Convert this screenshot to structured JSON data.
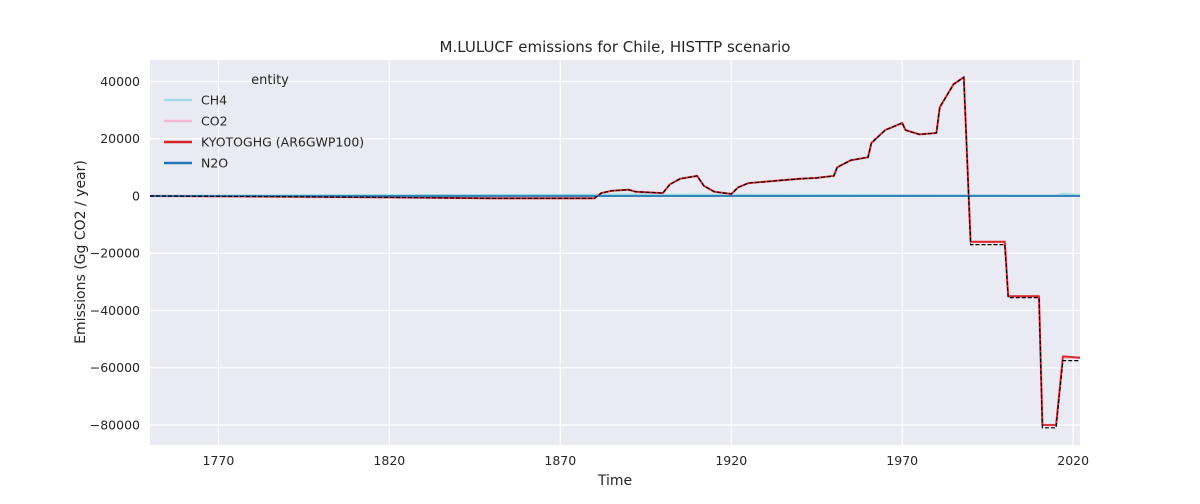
{
  "chart_data": {
    "type": "line",
    "title": "M.LULUCF emissions for Chile, HISTTP scenario",
    "xlabel": "Time",
    "ylabel": "Emissions (Gg CO2 / year)",
    "xlim": [
      1750,
      2022
    ],
    "ylim": [
      -87000,
      47500
    ],
    "x_ticks": [
      1770,
      1820,
      1870,
      1920,
      1970,
      2020
    ],
    "y_ticks": [
      40000,
      20000,
      0,
      -20000,
      -40000,
      -60000,
      -80000
    ],
    "y_tick_labels": [
      "40000",
      "20000",
      "0",
      "−20000",
      "−40000",
      "−60000",
      "−80000"
    ],
    "grid": true,
    "legend": {
      "title": "entity",
      "placement": "top-left"
    },
    "series": [
      {
        "name": "CH4",
        "color": "#9edae5",
        "points": [
          [
            1750,
            100
          ],
          [
            1880,
            400
          ],
          [
            1890,
            500
          ],
          [
            1900,
            400
          ],
          [
            1950,
            300
          ],
          [
            2000,
            200
          ],
          [
            2015,
            200
          ],
          [
            2017,
            700
          ],
          [
            2022,
            300
          ]
        ]
      },
      {
        "name": "CO2",
        "color": "#f7b6d2",
        "points": [
          [
            1750,
            0
          ],
          [
            1780,
            -200
          ],
          [
            1820,
            -500
          ],
          [
            1850,
            -800
          ],
          [
            1880,
            -800
          ],
          [
            1882,
            1000
          ],
          [
            1885,
            1800
          ],
          [
            1890,
            2200
          ],
          [
            1892,
            1500
          ],
          [
            1900,
            1000
          ],
          [
            1902,
            4000
          ],
          [
            1905,
            6000
          ],
          [
            1910,
            7000
          ],
          [
            1912,
            3500
          ],
          [
            1915,
            1500
          ],
          [
            1920,
            700
          ],
          [
            1922,
            3000
          ],
          [
            1925,
            4500
          ],
          [
            1930,
            5000
          ],
          [
            1935,
            5500
          ],
          [
            1940,
            6000
          ],
          [
            1945,
            6300
          ],
          [
            1950,
            7000
          ],
          [
            1951,
            10000
          ],
          [
            1955,
            12500
          ],
          [
            1960,
            13500
          ],
          [
            1961,
            18500
          ],
          [
            1965,
            23000
          ],
          [
            1970,
            25500
          ],
          [
            1971,
            23000
          ],
          [
            1975,
            21500
          ],
          [
            1980,
            22000
          ],
          [
            1981,
            31000
          ],
          [
            1985,
            39000
          ],
          [
            1988,
            41500
          ],
          [
            1990,
            -16000
          ],
          [
            2000,
            -16000
          ],
          [
            2001,
            -35000
          ],
          [
            2010,
            -35000
          ],
          [
            2011,
            -80000
          ],
          [
            2015,
            -80000
          ],
          [
            2017,
            -56500
          ],
          [
            2022,
            -56500
          ]
        ]
      },
      {
        "name": "KYOTOGHG (AR6GWP100)",
        "color": "#d62728",
        "points": [
          [
            1750,
            0
          ],
          [
            1780,
            -200
          ],
          [
            1820,
            -500
          ],
          [
            1850,
            -800
          ],
          [
            1880,
            -800
          ],
          [
            1882,
            1000
          ],
          [
            1885,
            1800
          ],
          [
            1890,
            2200
          ],
          [
            1892,
            1500
          ],
          [
            1900,
            1000
          ],
          [
            1902,
            4000
          ],
          [
            1905,
            6000
          ],
          [
            1910,
            7000
          ],
          [
            1912,
            3500
          ],
          [
            1915,
            1500
          ],
          [
            1920,
            700
          ],
          [
            1922,
            3000
          ],
          [
            1925,
            4500
          ],
          [
            1930,
            5000
          ],
          [
            1935,
            5500
          ],
          [
            1940,
            6000
          ],
          [
            1945,
            6300
          ],
          [
            1950,
            7000
          ],
          [
            1951,
            10000
          ],
          [
            1955,
            12500
          ],
          [
            1960,
            13500
          ],
          [
            1961,
            18500
          ],
          [
            1965,
            23000
          ],
          [
            1970,
            25500
          ],
          [
            1971,
            23000
          ],
          [
            1975,
            21500
          ],
          [
            1980,
            22000
          ],
          [
            1981,
            31000
          ],
          [
            1985,
            39000
          ],
          [
            1988,
            41500
          ],
          [
            1990,
            -16000
          ],
          [
            2000,
            -16000
          ],
          [
            2001,
            -35000
          ],
          [
            2010,
            -35000
          ],
          [
            2011,
            -80000
          ],
          [
            2015,
            -80000
          ],
          [
            2017,
            -56000
          ],
          [
            2022,
            -56500
          ]
        ]
      },
      {
        "name": "N2O",
        "color": "#1f77b4",
        "points": [
          [
            1750,
            0
          ],
          [
            2022,
            0
          ]
        ]
      }
    ],
    "reference_line": {
      "color": "#000000",
      "style": "dashed",
      "points": [
        [
          1750,
          0
        ],
        [
          1780,
          -200
        ],
        [
          1820,
          -500
        ],
        [
          1850,
          -800
        ],
        [
          1880,
          -800
        ],
        [
          1882,
          1000
        ],
        [
          1885,
          1800
        ],
        [
          1890,
          2200
        ],
        [
          1892,
          1500
        ],
        [
          1900,
          1000
        ],
        [
          1902,
          4000
        ],
        [
          1905,
          6000
        ],
        [
          1910,
          7000
        ],
        [
          1912,
          3500
        ],
        [
          1915,
          1500
        ],
        [
          1920,
          700
        ],
        [
          1922,
          3000
        ],
        [
          1925,
          4500
        ],
        [
          1930,
          5000
        ],
        [
          1935,
          5500
        ],
        [
          1940,
          6000
        ],
        [
          1945,
          6300
        ],
        [
          1950,
          7000
        ],
        [
          1951,
          10000
        ],
        [
          1955,
          12500
        ],
        [
          1960,
          13500
        ],
        [
          1961,
          18500
        ],
        [
          1965,
          23000
        ],
        [
          1970,
          25500
        ],
        [
          1971,
          23000
        ],
        [
          1975,
          21500
        ],
        [
          1980,
          22000
        ],
        [
          1981,
          31000
        ],
        [
          1985,
          39000
        ],
        [
          1988,
          41500
        ],
        [
          1990,
          -17000
        ],
        [
          2000,
          -17000
        ],
        [
          2001,
          -35500
        ],
        [
          2010,
          -35500
        ],
        [
          2011,
          -81000
        ],
        [
          2015,
          -81000
        ],
        [
          2017,
          -57500
        ],
        [
          2022,
          -57500
        ]
      ]
    }
  }
}
